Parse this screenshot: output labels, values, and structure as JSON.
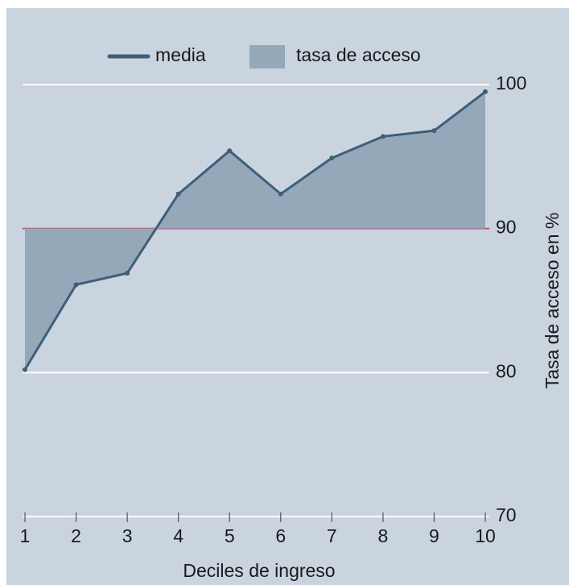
{
  "chart_data": {
    "type": "line",
    "x": [
      1,
      2,
      3,
      4,
      5,
      6,
      7,
      8,
      9,
      10
    ],
    "xlim": [
      1,
      10
    ],
    "xticks": [
      1,
      2,
      3,
      4,
      5,
      6,
      7,
      8,
      9,
      10
    ],
    "xlabel": "Deciles de ingreso",
    "ylabel": "Tasa de acceso en %",
    "ylim": [
      70,
      100
    ],
    "yticks": [
      70,
      80,
      90,
      100
    ],
    "grid": true,
    "series": [
      {
        "name": "media",
        "color": "#3d6078",
        "values": [
          80.2,
          86.1,
          86.9,
          92.4,
          95.4,
          92.4,
          94.9,
          96.4,
          96.8,
          99.5
        ]
      }
    ],
    "fill": {
      "name": "tasa de acceso",
      "color": "#94a8ba",
      "baseline": 90
    },
    "reference_line": {
      "value": 90,
      "color": "#c8506a"
    }
  }
}
